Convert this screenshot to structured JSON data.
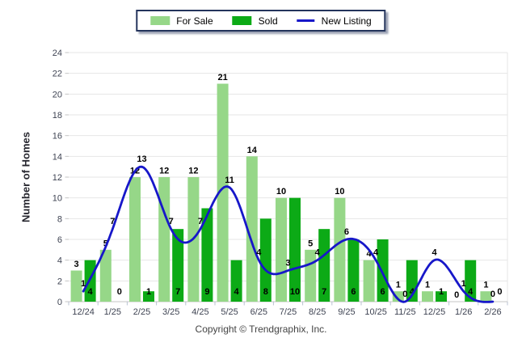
{
  "legend": {
    "items": [
      {
        "id": "for_sale",
        "label": "For Sale"
      },
      {
        "id": "sold",
        "label": "Sold"
      },
      {
        "id": "new_listing",
        "label": "New Listing"
      }
    ]
  },
  "ylabel": "Number of Homes",
  "footer": {
    "copyright": "Copyright © Trendgraphix, Inc."
  },
  "colors": {
    "for_sale": "#96d788",
    "sold": "#0caa16",
    "new_listing": "#1717c9",
    "grid": "#e6e6e6",
    "axis_line": "#c4c4c4",
    "tick": "#b9c2d2",
    "axis_text": "#3f4453",
    "value_label": "#000000"
  },
  "chart_data": {
    "type": "bar+line",
    "title": "",
    "xlabel": "",
    "ylabel": "Number of Homes",
    "ylim": [
      0,
      24
    ],
    "ytick_step": 2,
    "grid": "horizontal",
    "legend_position": "top-center",
    "categories": [
      "12/24",
      "1/25",
      "2/25",
      "3/25",
      "4/25",
      "5/25",
      "6/25",
      "7/25",
      "8/25",
      "9/25",
      "10/25",
      "11/25",
      "12/25",
      "1/26",
      "2/26"
    ],
    "series": [
      {
        "name": "For Sale",
        "type": "bar",
        "color_key": "for_sale",
        "values": [
          3,
          5,
          12,
          12,
          12,
          21,
          14,
          10,
          5,
          10,
          4,
          1,
          1,
          0,
          1
        ]
      },
      {
        "name": "Sold",
        "type": "bar",
        "color_key": "sold",
        "values": [
          4,
          0,
          1,
          7,
          9,
          4,
          8,
          10,
          7,
          6,
          6,
          4,
          1,
          4,
          0
        ]
      },
      {
        "name": "New Listing",
        "type": "line",
        "color_key": "new_listing",
        "values": [
          1,
          7,
          13,
          7,
          7,
          11,
          4,
          3,
          4,
          6,
          4,
          0,
          4,
          1,
          0
        ]
      }
    ]
  }
}
